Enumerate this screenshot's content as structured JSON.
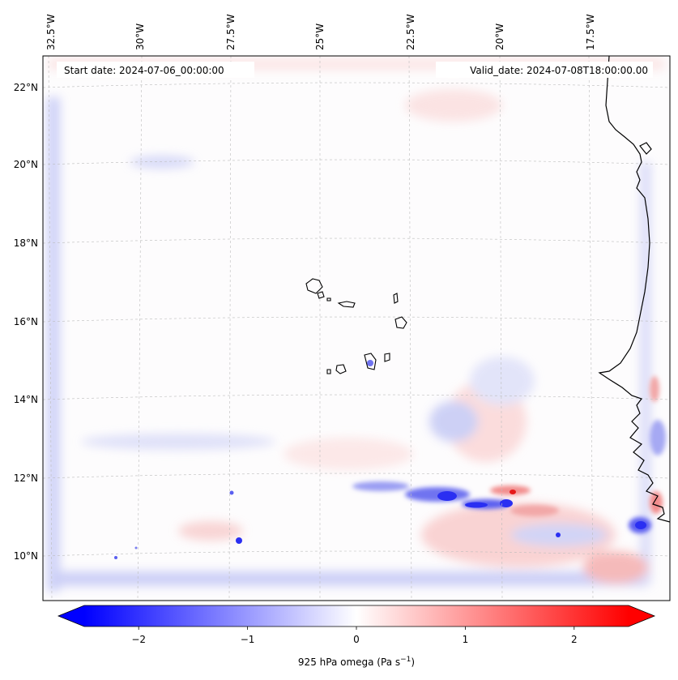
{
  "map": {
    "start_label": "Start date: 2024-07-06_00:00:00",
    "valid_label": "Valid_date: 2024-07-08T18:00:00.00",
    "lon_labels": [
      "32.5°W",
      "30°W",
      "27.5°W",
      "25°W",
      "22.5°W",
      "20°W",
      "17.5°W"
    ],
    "lat_labels": [
      "22°N",
      "20°N",
      "18°N",
      "16°N",
      "14°N",
      "12°N",
      "10°N"
    ],
    "colorbar": {
      "ticks": [
        "−2",
        "−1",
        "0",
        "1",
        "2"
      ],
      "tick_values": [
        -2,
        -1,
        0,
        1,
        2
      ],
      "range": [
        -2.5,
        2.5
      ],
      "label_main": "925 hPa omega (Pa s",
      "label_sup": "−1",
      "label_end": ")",
      "colormap": "bwr",
      "extend": "both"
    },
    "colors": {
      "low": "#0000ff",
      "mid": "#ffffff",
      "high": "#ff0000",
      "coastline": "#000000"
    }
  }
}
